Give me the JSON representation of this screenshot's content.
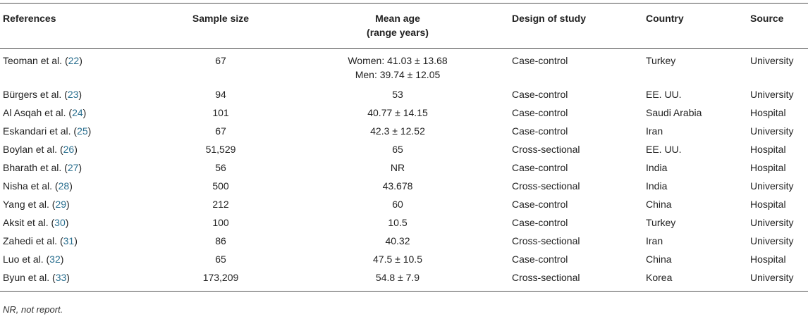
{
  "headers": [
    "References",
    "Sample size",
    "Mean age",
    "(range years)",
    "Design of study",
    "Country",
    "Source"
  ],
  "rows": [
    {
      "author": "Teoman et al.",
      "ref": "22",
      "sample": "67",
      "age": "Women: 41.03 ± 13.68",
      "age2": "Men: 39.74 ± 12.05",
      "design": "Case-control",
      "country": "Turkey",
      "source": "University"
    },
    {
      "author": "Bürgers et al.",
      "ref": "23",
      "sample": "94",
      "age": "53",
      "design": "Case-control",
      "country": "EE. UU.",
      "source": "University"
    },
    {
      "author": "Al Asqah et al.",
      "ref": "24",
      "sample": "101",
      "age": "40.77 ± 14.15",
      "design": "Case-control",
      "country": "Saudi Arabia",
      "source": "Hospital"
    },
    {
      "author": "Eskandari et al.",
      "ref": "25",
      "sample": "67",
      "age": "42.3 ± 12.52",
      "design": "Case-control",
      "country": "Iran",
      "source": "University"
    },
    {
      "author": "Boylan et al.",
      "ref": "26",
      "sample": "51,529",
      "age": "65",
      "design": "Cross-sectional",
      "country": "EE. UU.",
      "source": "Hospital"
    },
    {
      "author": "Bharath et al.",
      "ref": "27",
      "sample": "56",
      "age": "NR",
      "design": "Case-control",
      "country": "India",
      "source": "Hospital"
    },
    {
      "author": "Nisha et al.",
      "ref": "28",
      "sample": "500",
      "age": "43.678",
      "design": "Cross-sectional",
      "country": "India",
      "source": "University"
    },
    {
      "author": "Yang et al.",
      "ref": "29",
      "sample": "212",
      "age": "60",
      "design": "Case-control",
      "country": "China",
      "source": "Hospital"
    },
    {
      "author": "Aksit et al.",
      "ref": "30",
      "sample": "100",
      "age": "10.5",
      "design": "Case-control",
      "country": "Turkey",
      "source": "University"
    },
    {
      "author": "Zahedi et al.",
      "ref": "31",
      "sample": "86",
      "age": "40.32",
      "design": "Cross-sectional",
      "country": "Iran",
      "source": "University"
    },
    {
      "author": "Luo et al.",
      "ref": "32",
      "sample": "65",
      "age": "47.5 ± 10.5",
      "design": "Case-control",
      "country": "China",
      "source": "Hospital"
    },
    {
      "author": "Byun et al.",
      "ref": "33",
      "sample": "173,209",
      "age": "54.8 ± 7.9",
      "design": "Cross-sectional",
      "country": "Korea",
      "source": "University"
    }
  ],
  "footnote": "NR, not report."
}
